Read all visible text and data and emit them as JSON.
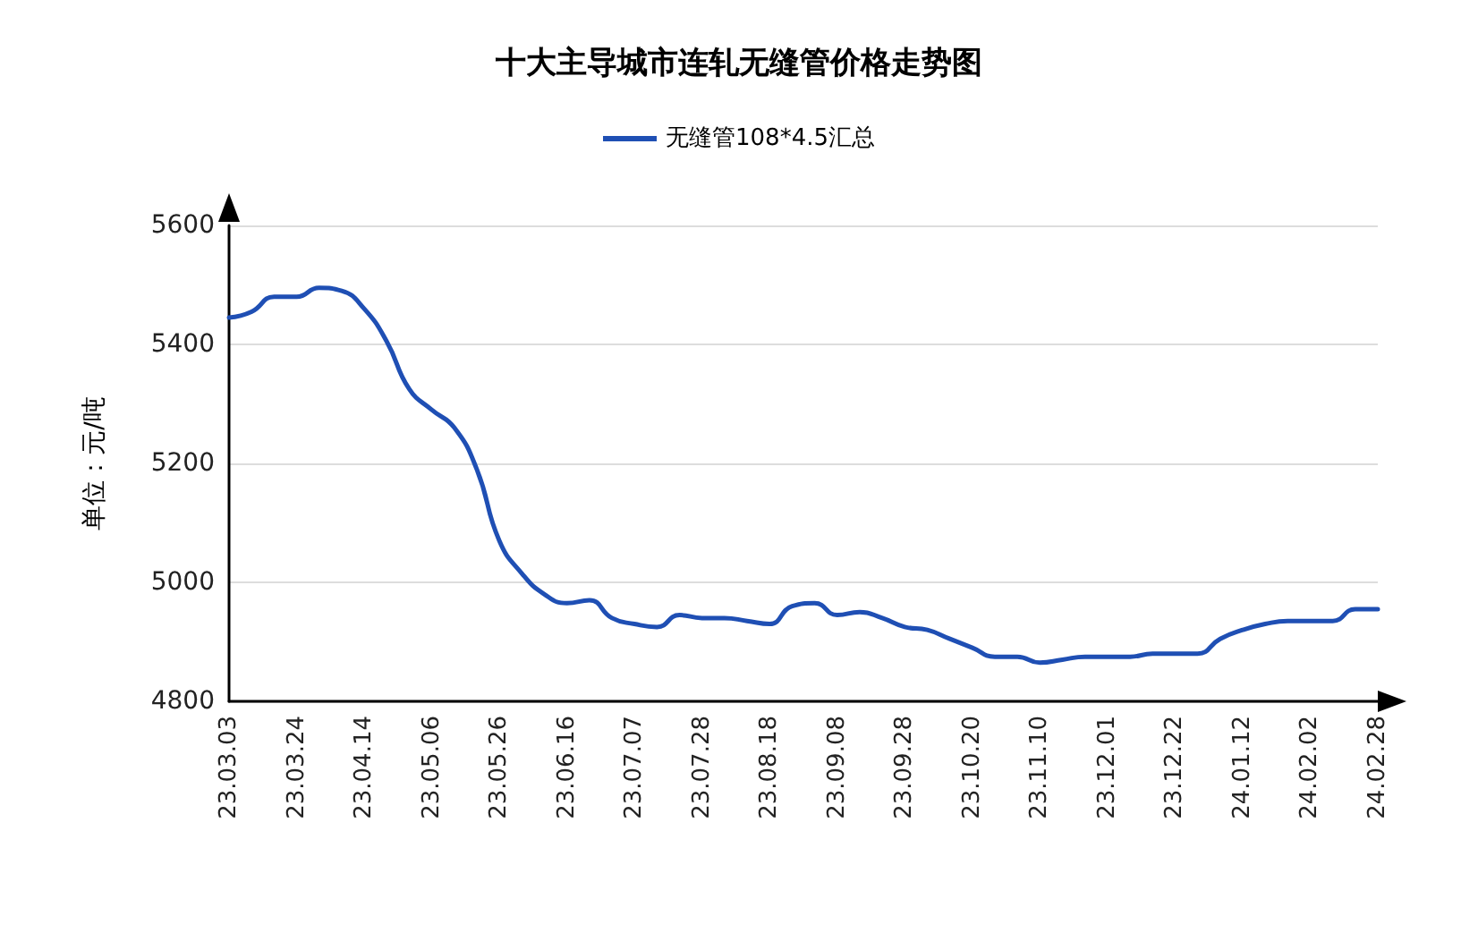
{
  "chart_data": {
    "type": "line",
    "title": "十大主导城市连轧无缝管价格走势图",
    "ylabel": "单位：元/吨",
    "categories": [
      "23.03.03",
      null,
      null,
      "23.03.24",
      null,
      null,
      "23.04.14",
      null,
      null,
      "23.05.06",
      null,
      null,
      "23.05.26",
      null,
      null,
      "23.06.16",
      null,
      null,
      "23.07.07",
      null,
      null,
      "23.07.28",
      null,
      null,
      "23.08.18",
      null,
      null,
      "23.09.08",
      null,
      null,
      "23.09.28",
      null,
      null,
      "23.10.20",
      null,
      null,
      "23.11.10",
      null,
      null,
      "23.12.01",
      null,
      null,
      "23.12.22",
      null,
      null,
      "24.01.12",
      null,
      null,
      "24.02.02",
      null,
      null,
      "24.02.28"
    ],
    "series": [
      {
        "name": "无缝管108*4.5汇总",
        "color": "#1f4fb4",
        "values": [
          5445,
          5455,
          5480,
          5480,
          5495,
          5490,
          5460,
          5405,
          5325,
          5290,
          5260,
          5190,
          5070,
          5015,
          4980,
          4965,
          4970,
          4940,
          4930,
          4925,
          4945,
          4940,
          4940,
          4935,
          4930,
          4960,
          4965,
          4945,
          4950,
          4940,
          4925,
          4920,
          4905,
          4890,
          4875,
          4875,
          4865,
          4870,
          4875,
          4875,
          4875,
          4880,
          4880,
          4880,
          4905,
          4920,
          4930,
          4935,
          4935,
          4935,
          4955,
          4955
        ]
      }
    ],
    "ylim": [
      4800,
      5600
    ],
    "yticks": [
      4800,
      5000,
      5200,
      5400,
      5600
    ],
    "grid": "y",
    "legend": "top",
    "marker": "none",
    "line_style": "solid"
  }
}
